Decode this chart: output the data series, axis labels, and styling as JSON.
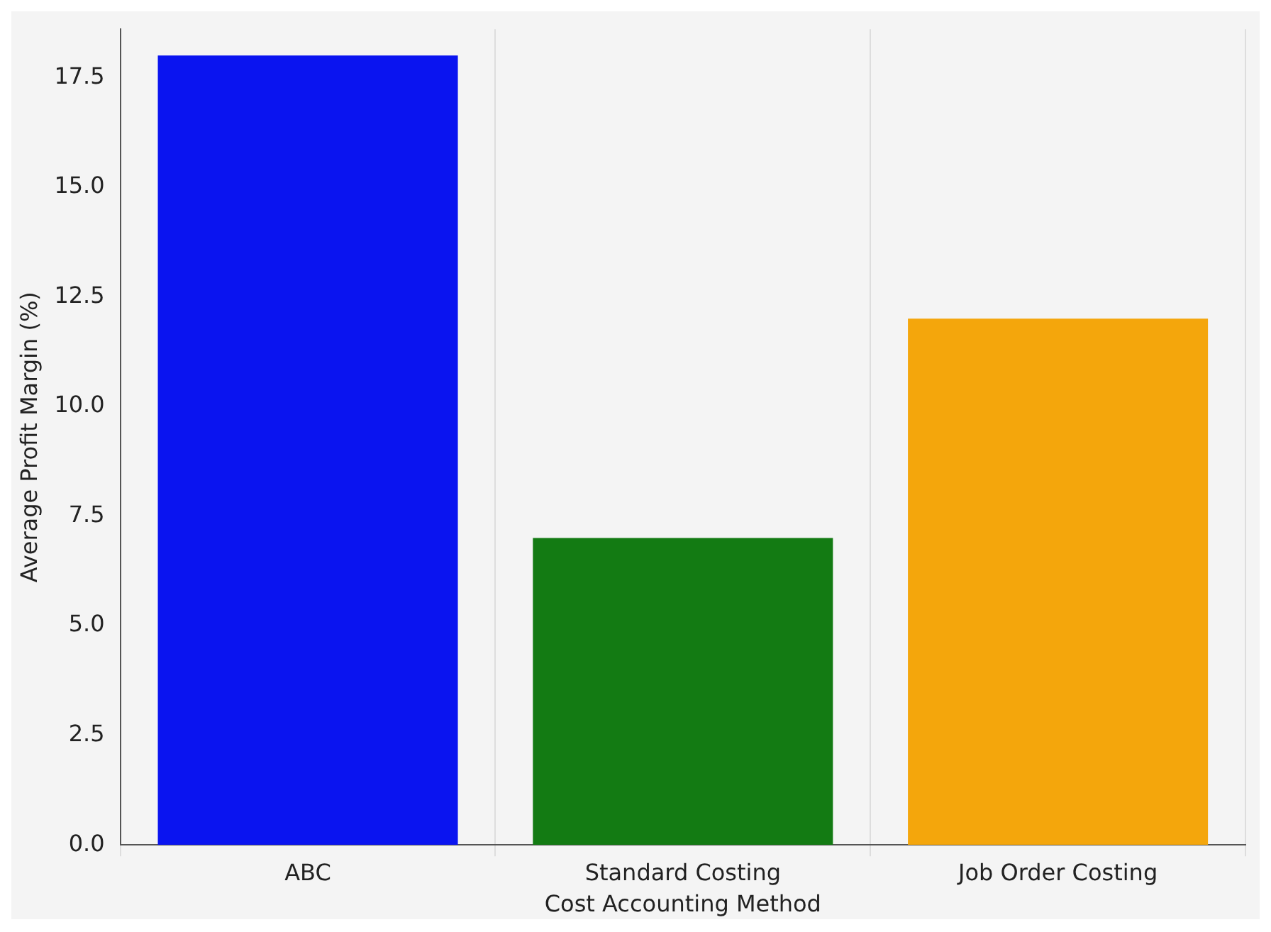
{
  "chart_data": {
    "type": "bar",
    "xlabel": "Cost Accounting Method",
    "ylabel": "Average Profit Margin (%)",
    "categories": [
      "ABC",
      "Standard Costing",
      "Job Order Costing"
    ],
    "values": [
      18,
      7,
      12
    ],
    "colors": [
      "#0a14f0",
      "#137b13",
      "#f4a60c"
    ],
    "ylim": [
      0,
      18.6
    ],
    "yticks": [
      {
        "value": 0,
        "label": "0.0"
      },
      2.5,
      {
        "value": 5,
        "label": "5.0"
      },
      7.5,
      {
        "value": 10,
        "label": "10.0"
      },
      12.5,
      {
        "value": 15,
        "label": "15.0"
      },
      17.5
    ],
    "grid": "x"
  }
}
